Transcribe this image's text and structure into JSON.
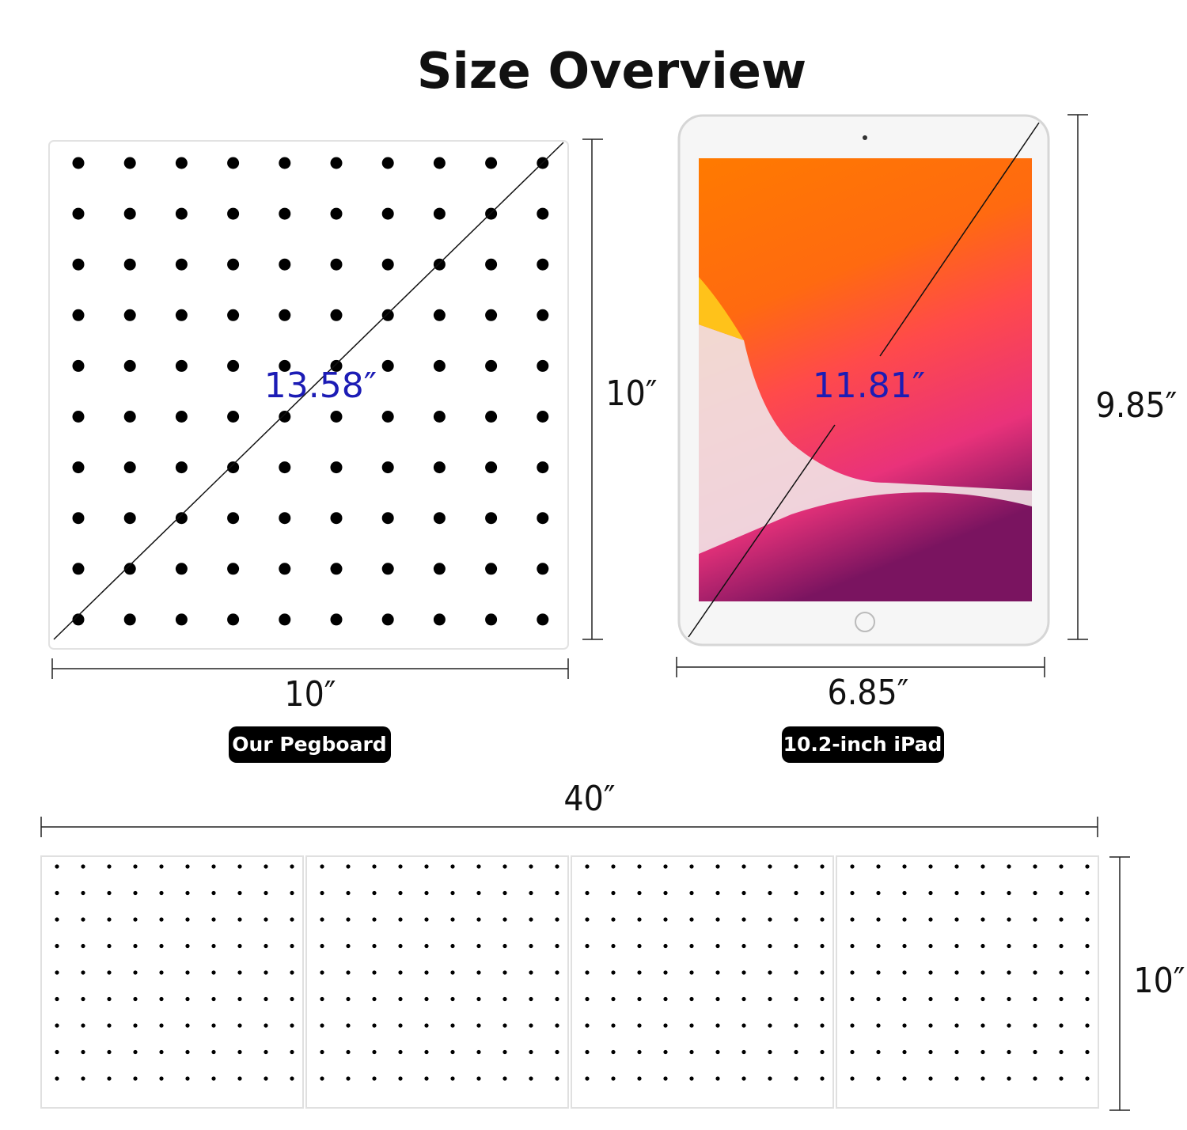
{
  "title": "Size Overview",
  "pegboard": {
    "diagonal": "13.58″",
    "height": "10″",
    "width": "10″",
    "label": "Our Pegboard"
  },
  "ipad": {
    "diagonal": "11.81″",
    "height": "9.85″",
    "width": "6.85″",
    "label": "10.2-inch  iPad"
  },
  "wall": {
    "width": "40″",
    "height": "10″"
  }
}
